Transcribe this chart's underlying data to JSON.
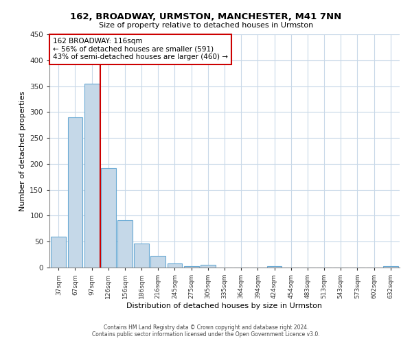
{
  "title": "162, BROADWAY, URMSTON, MANCHESTER, M41 7NN",
  "subtitle": "Size of property relative to detached houses in Urmston",
  "xlabel": "Distribution of detached houses by size in Urmston",
  "ylabel": "Number of detached properties",
  "bar_labels": [
    "37sqm",
    "67sqm",
    "97sqm",
    "126sqm",
    "156sqm",
    "186sqm",
    "216sqm",
    "245sqm",
    "275sqm",
    "305sqm",
    "335sqm",
    "364sqm",
    "394sqm",
    "424sqm",
    "454sqm",
    "483sqm",
    "513sqm",
    "543sqm",
    "573sqm",
    "602sqm",
    "632sqm"
  ],
  "bar_values": [
    60,
    290,
    355,
    192,
    91,
    46,
    22,
    8,
    2,
    5,
    0,
    0,
    0,
    2,
    0,
    0,
    0,
    0,
    0,
    0,
    3
  ],
  "bar_color": "#c5d8e8",
  "bar_edge_color": "#6aaad4",
  "ylim": [
    0,
    450
  ],
  "yticks": [
    0,
    50,
    100,
    150,
    200,
    250,
    300,
    350,
    400,
    450
  ],
  "vline_x": 2.5,
  "vline_color": "#cc0000",
  "annotation_title": "162 BROADWAY: 116sqm",
  "annotation_line1": "← 56% of detached houses are smaller (591)",
  "annotation_line2": "43% of semi-detached houses are larger (460) →",
  "annotation_box_color": "#cc0000",
  "footer_line1": "Contains HM Land Registry data © Crown copyright and database right 2024.",
  "footer_line2": "Contains public sector information licensed under the Open Government Licence v3.0.",
  "background_color": "#ffffff",
  "grid_color": "#c8d8e8"
}
